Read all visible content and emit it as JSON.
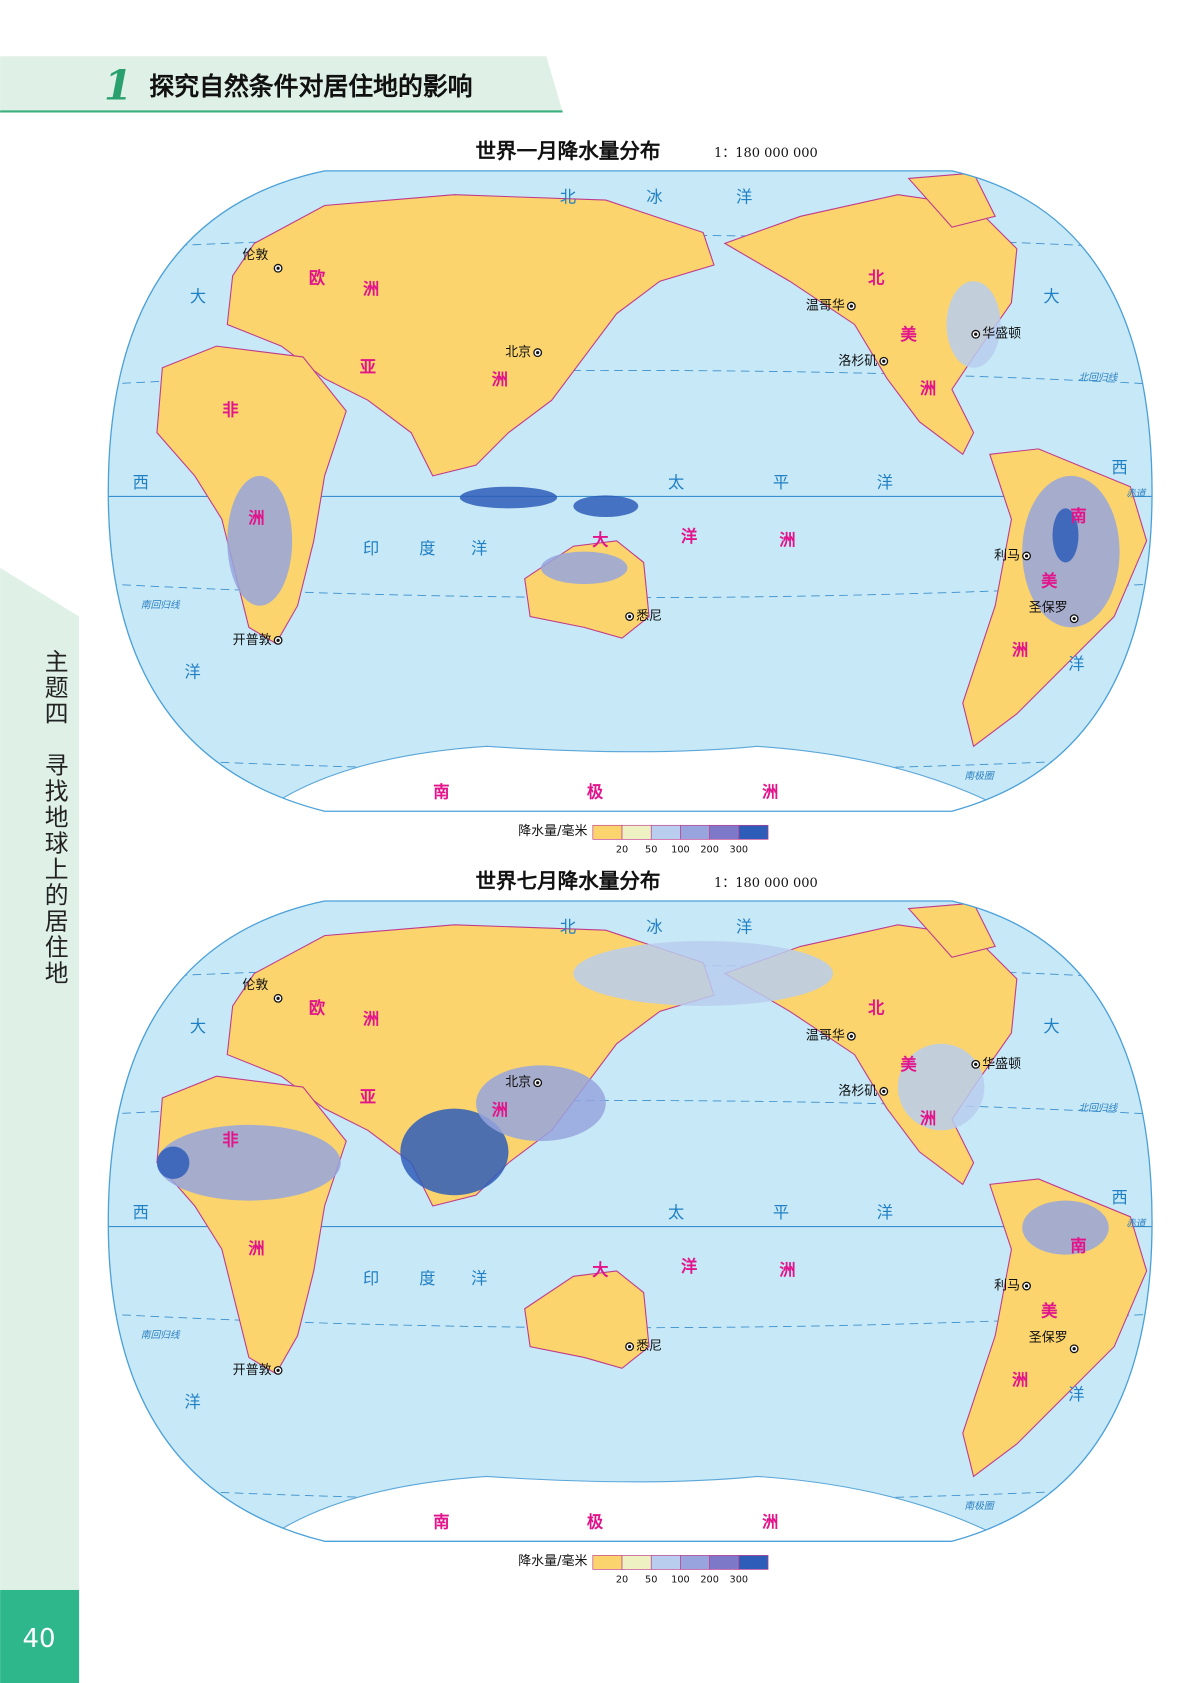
{
  "header": {
    "number": "1",
    "title": "探究自然条件对居住地的影响"
  },
  "sidebar": {
    "text": "主题四　寻找地球上的居住地",
    "page": "40"
  },
  "maps": [
    {
      "title": "世界一月降水量分布",
      "scale": "1：180 000 000",
      "place_labels": [
        "北",
        "冰",
        "洋",
        "大",
        "西",
        "洋",
        "大",
        "西",
        "洋",
        "太",
        "平",
        "洋",
        "印",
        "度",
        "洋",
        "欧",
        "洲",
        "亚",
        "洲",
        "非",
        "洲",
        "北",
        "美",
        "洲",
        "南",
        "美",
        "洲",
        "大",
        "洋",
        "洲",
        "南",
        "极",
        "洲"
      ],
      "cities": [
        "伦敦",
        "北京",
        "温哥华",
        "华盛顿",
        "洛杉矶",
        "利马",
        "圣保罗",
        "悉尼",
        "开普敦"
      ],
      "lines": [
        "北回归线",
        "赤道",
        "南回归线",
        "南极圈"
      ],
      "legend": {
        "title": "降水量/毫米",
        "ticks": [
          20,
          50,
          100,
          200,
          300
        ]
      }
    },
    {
      "title": "世界七月降水量分布",
      "scale": "1：180 000 000",
      "place_labels": [
        "北",
        "冰",
        "洋",
        "大",
        "西",
        "洋",
        "大",
        "西",
        "洋",
        "太",
        "平",
        "洋",
        "印",
        "度",
        "洋",
        "欧",
        "洲",
        "亚",
        "洲",
        "非",
        "洲",
        "北",
        "美",
        "洲",
        "南",
        "美",
        "洲",
        "大",
        "洋",
        "洲",
        "南",
        "极",
        "洲"
      ],
      "cities": [
        "伦敦",
        "北京",
        "温哥华",
        "华盛顿",
        "洛杉矶",
        "利马",
        "圣保罗",
        "悉尼",
        "开普敦"
      ],
      "lines": [
        "北回归线",
        "赤道",
        "南回归线",
        "南极圈"
      ],
      "legend": {
        "title": "降水量/毫米",
        "ticks": [
          20,
          50,
          100,
          200,
          300
        ]
      }
    }
  ]
}
